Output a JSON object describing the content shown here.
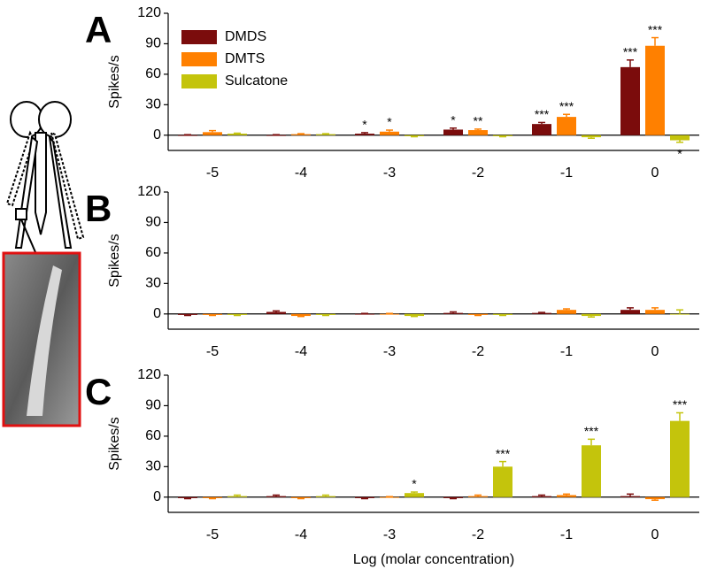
{
  "chart_data": [
    {
      "type": "bar",
      "panel": "A",
      "y_label": "Spikes/s",
      "legend": "upper-left",
      "categories": [
        "-5",
        "-4",
        "-3",
        "-2",
        "-1",
        "0"
      ],
      "ylim": [
        -15,
        120
      ],
      "yticks": [
        0,
        30,
        60,
        90,
        120
      ],
      "series": [
        {
          "name": "DMDS",
          "color": "#7b0c0c",
          "values": [
            0,
            0,
            1.5,
            5.5,
            11,
            67
          ],
          "errors": [
            0.5,
            0.5,
            1,
            1.5,
            1.5,
            7
          ],
          "significance": [
            null,
            null,
            "*",
            "*",
            "***",
            "***"
          ]
        },
        {
          "name": "DMTS",
          "color": "#ff8000",
          "values": [
            3,
            1,
            3.5,
            5,
            18,
            88
          ],
          "errors": [
            1.5,
            0.5,
            1.5,
            1,
            2.5,
            8
          ],
          "significance": [
            null,
            null,
            "*",
            "**",
            "***",
            "***"
          ]
        },
        {
          "name": "Sulcatone",
          "color": "#c4c40c",
          "values": [
            1.5,
            1,
            -1,
            -1,
            -2,
            -5
          ],
          "errors": [
            0.5,
            0.5,
            0.5,
            0.5,
            1,
            2
          ],
          "significance": [
            null,
            null,
            null,
            null,
            null,
            "*"
          ]
        }
      ]
    },
    {
      "type": "bar",
      "panel": "B",
      "y_label": "Spikes/s",
      "categories": [
        "-5",
        "-4",
        "-3",
        "-2",
        "-1",
        "0"
      ],
      "ylim": [
        -15,
        120
      ],
      "yticks": [
        0,
        30,
        60,
        90,
        120
      ],
      "series": [
        {
          "color": "#7b0c0c",
          "values": [
            -1,
            2,
            0,
            1,
            1,
            4
          ],
          "errors": [
            0.5,
            1,
            0.5,
            1,
            0.5,
            2
          ]
        },
        {
          "color": "#ff8000",
          "values": [
            -1,
            -2,
            0,
            -1,
            4,
            4
          ],
          "errors": [
            0.5,
            0.5,
            0.5,
            0.5,
            1,
            2
          ]
        },
        {
          "color": "#c4c40c",
          "values": [
            -1,
            -1,
            -2,
            -1,
            -2,
            0
          ],
          "errors": [
            0.5,
            0.5,
            0.5,
            0.5,
            1,
            4
          ]
        }
      ]
    },
    {
      "type": "bar",
      "panel": "C",
      "y_label": "Spikes/s",
      "x_label": "Log (molar concentration)",
      "categories": [
        "-5",
        "-4",
        "-3",
        "-2",
        "-1",
        "0"
      ],
      "ylim": [
        -15,
        120
      ],
      "yticks": [
        0,
        30,
        60,
        90,
        120
      ],
      "series": [
        {
          "color": "#7b0c0c",
          "values": [
            -1,
            1,
            -1,
            -1,
            1,
            1
          ],
          "errors": [
            0.5,
            1,
            0.5,
            0.5,
            1,
            2
          ]
        },
        {
          "color": "#ff8000",
          "values": [
            -1,
            -1,
            0,
            1,
            2,
            -2
          ],
          "errors": [
            0.5,
            0.5,
            0.5,
            1,
            1,
            1
          ]
        },
        {
          "color": "#c4c40c",
          "values": [
            1,
            1,
            4,
            30,
            51,
            75
          ],
          "errors": [
            1,
            1,
            1,
            5,
            6,
            8
          ],
          "significance": [
            null,
            null,
            "*",
            "***",
            "***",
            "***"
          ]
        }
      ]
    }
  ]
}
